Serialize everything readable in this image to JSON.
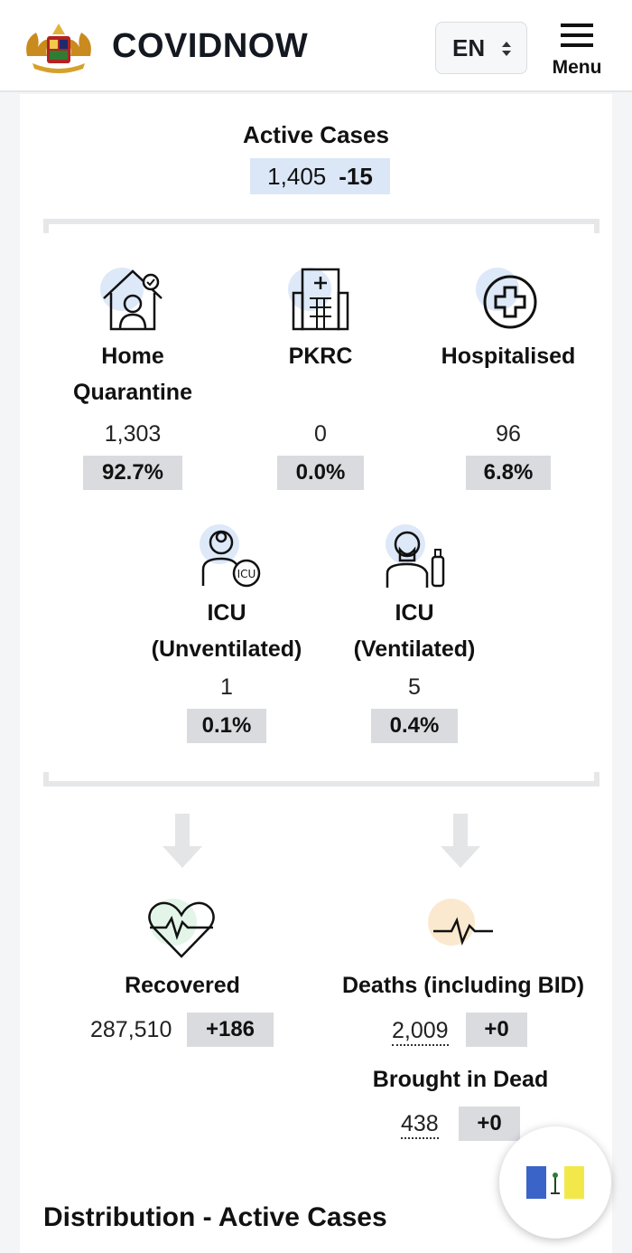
{
  "header": {
    "brand": "COVIDNOW",
    "language": "EN",
    "menu_label": "Menu"
  },
  "active": {
    "title": "Active Cases",
    "value": "1,405",
    "change": "-15"
  },
  "breakdown": [
    {
      "label": "Home\nQuarantine",
      "value": "1,303",
      "percent": "92.7%",
      "icon": "home-quarantine-icon"
    },
    {
      "label": "PKRC",
      "value": "0",
      "percent": "0.0%",
      "icon": "hospital-building-icon"
    },
    {
      "label": "Hospitalised",
      "value": "96",
      "percent": "6.8%",
      "icon": "medical-cross-icon"
    },
    {
      "label": "ICU\n(Unventilated)",
      "value": "1",
      "percent": "0.1%",
      "icon": "icu-doctor-icon"
    },
    {
      "label": "ICU\n(Ventilated)",
      "value": "5",
      "percent": "0.4%",
      "icon": "ventilated-patient-icon"
    }
  ],
  "outcomes": {
    "recovered": {
      "label": "Recovered",
      "value": "287,510",
      "change": "+186"
    },
    "deaths": {
      "label": "Deaths (including BID)",
      "value": "2,009",
      "change": "+0"
    },
    "bid": {
      "label": "Brought in Dead",
      "value": "438",
      "change": "+0"
    }
  },
  "distribution_title": "Distribution - Active Cases",
  "colors": {
    "chip_blue": "#dbe7f7",
    "chip_gray": "#d9dbdf",
    "recovered_bg": "#e3f5e9",
    "deaths_bg": "#fbe9cf",
    "icon_bg": "#dde8f8"
  }
}
